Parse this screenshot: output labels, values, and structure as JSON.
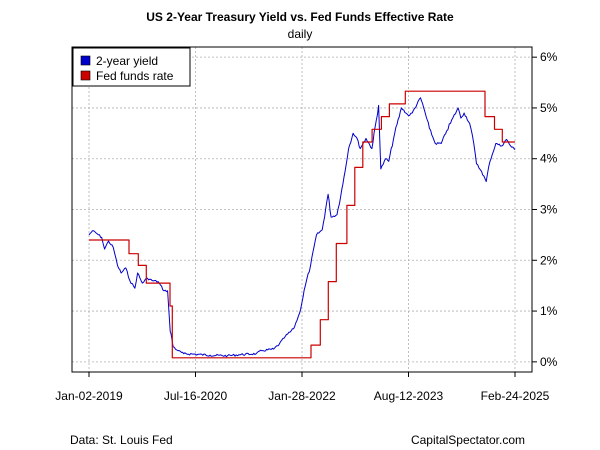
{
  "chart_data": {
    "type": "line",
    "title": "US 2-Year Treasury Yield vs. Fed Funds Effective Rate",
    "subtitle": "daily",
    "source_left": "Data: St. Louis Fed",
    "source_right": "CapitalSpectator.com",
    "x_ticks": [
      "Jan-02-2019",
      "Jul-16-2020",
      "Jan-28-2022",
      "Aug-12-2023",
      "Feb-24-2025"
    ],
    "x_range": [
      "2019-01-02",
      "2025-02-24"
    ],
    "y_ticks": [
      "0%",
      "1%",
      "2%",
      "3%",
      "4%",
      "5%",
      "6%"
    ],
    "y_unit": "%",
    "ylim": [
      -0.2,
      6.2
    ],
    "grid": true,
    "legend_position": "top-left",
    "series": [
      {
        "name": "2-year yield",
        "color": "#0000cc",
        "points": [
          [
            "2019-01-02",
            2.5
          ],
          [
            "2019-01-20",
            2.58
          ],
          [
            "2019-02-15",
            2.52
          ],
          [
            "2019-03-10",
            2.45
          ],
          [
            "2019-03-25",
            2.22
          ],
          [
            "2019-04-15",
            2.38
          ],
          [
            "2019-05-10",
            2.25
          ],
          [
            "2019-06-01",
            1.9
          ],
          [
            "2019-06-20",
            1.75
          ],
          [
            "2019-07-15",
            1.85
          ],
          [
            "2019-08-05",
            1.6
          ],
          [
            "2019-09-01",
            1.45
          ],
          [
            "2019-09-15",
            1.75
          ],
          [
            "2019-10-10",
            1.55
          ],
          [
            "2019-11-05",
            1.65
          ],
          [
            "2019-12-01",
            1.6
          ],
          [
            "2020-01-01",
            1.58
          ],
          [
            "2020-02-01",
            1.4
          ],
          [
            "2020-02-20",
            1.4
          ],
          [
            "2020-03-05",
            0.6
          ],
          [
            "2020-03-12",
            0.5
          ],
          [
            "2020-03-20",
            0.3
          ],
          [
            "2020-04-15",
            0.22
          ],
          [
            "2020-05-15",
            0.16
          ],
          [
            "2020-07-16",
            0.15
          ],
          [
            "2020-10-01",
            0.13
          ],
          [
            "2021-01-01",
            0.12
          ],
          [
            "2021-03-01",
            0.14
          ],
          [
            "2021-06-01",
            0.16
          ],
          [
            "2021-07-01",
            0.22
          ],
          [
            "2021-09-01",
            0.25
          ],
          [
            "2021-10-01",
            0.35
          ],
          [
            "2021-11-01",
            0.5
          ],
          [
            "2021-12-15",
            0.65
          ],
          [
            "2022-01-15",
            0.95
          ],
          [
            "2022-02-15",
            1.5
          ],
          [
            "2022-03-15",
            1.9
          ],
          [
            "2022-04-15",
            2.5
          ],
          [
            "2022-05-15",
            2.6
          ],
          [
            "2022-06-15",
            3.3
          ],
          [
            "2022-07-01",
            2.85
          ],
          [
            "2022-08-01",
            2.9
          ],
          [
            "2022-09-01",
            3.5
          ],
          [
            "2022-10-01",
            4.2
          ],
          [
            "2022-10-25",
            4.5
          ],
          [
            "2022-11-15",
            4.4
          ],
          [
            "2022-12-01",
            4.2
          ],
          [
            "2023-01-01",
            4.4
          ],
          [
            "2023-02-01",
            4.2
          ],
          [
            "2023-03-08",
            5.05
          ],
          [
            "2023-03-20",
            3.8
          ],
          [
            "2023-04-15",
            4.0
          ],
          [
            "2023-05-01",
            3.95
          ],
          [
            "2023-06-01",
            4.5
          ],
          [
            "2023-07-07",
            5.0
          ],
          [
            "2023-08-12",
            4.85
          ],
          [
            "2023-09-01",
            4.9
          ],
          [
            "2023-10-15",
            5.2
          ],
          [
            "2023-11-01",
            5.0
          ],
          [
            "2023-12-01",
            4.6
          ],
          [
            "2024-01-01",
            4.3
          ],
          [
            "2024-02-01",
            4.3
          ],
          [
            "2024-03-01",
            4.55
          ],
          [
            "2024-04-30",
            5.0
          ],
          [
            "2024-05-15",
            4.8
          ],
          [
            "2024-06-01",
            4.9
          ],
          [
            "2024-06-30",
            4.7
          ],
          [
            "2024-07-15",
            4.45
          ],
          [
            "2024-08-05",
            3.9
          ],
          [
            "2024-09-01",
            3.75
          ],
          [
            "2024-09-25",
            3.55
          ],
          [
            "2024-10-15",
            3.95
          ],
          [
            "2024-11-15",
            4.3
          ],
          [
            "2024-12-15",
            4.25
          ],
          [
            "2025-01-10",
            4.38
          ],
          [
            "2025-02-01",
            4.25
          ],
          [
            "2025-02-24",
            4.18
          ]
        ]
      },
      {
        "name": "Fed funds rate",
        "color": "#cc0000",
        "points": [
          [
            "2019-01-02",
            2.4
          ],
          [
            "2019-08-01",
            2.4
          ],
          [
            "2019-08-01",
            2.13
          ],
          [
            "2019-09-19",
            2.13
          ],
          [
            "2019-09-19",
            1.9
          ],
          [
            "2019-10-31",
            1.9
          ],
          [
            "2019-10-31",
            1.55
          ],
          [
            "2020-03-04",
            1.55
          ],
          [
            "2020-03-04",
            1.1
          ],
          [
            "2020-03-16",
            1.1
          ],
          [
            "2020-03-16",
            0.08
          ],
          [
            "2021-12-31",
            0.08
          ],
          [
            "2022-03-17",
            0.08
          ],
          [
            "2022-03-17",
            0.33
          ],
          [
            "2022-05-05",
            0.33
          ],
          [
            "2022-05-05",
            0.83
          ],
          [
            "2022-06-16",
            0.83
          ],
          [
            "2022-06-16",
            1.58
          ],
          [
            "2022-07-28",
            1.58
          ],
          [
            "2022-07-28",
            2.33
          ],
          [
            "2022-09-22",
            2.33
          ],
          [
            "2022-09-22",
            3.08
          ],
          [
            "2022-11-03",
            3.08
          ],
          [
            "2022-11-03",
            3.83
          ],
          [
            "2022-12-15",
            3.83
          ],
          [
            "2022-12-15",
            4.33
          ],
          [
            "2023-02-02",
            4.33
          ],
          [
            "2023-02-02",
            4.58
          ],
          [
            "2023-03-23",
            4.58
          ],
          [
            "2023-03-23",
            4.83
          ],
          [
            "2023-05-04",
            4.83
          ],
          [
            "2023-05-04",
            5.08
          ],
          [
            "2023-07-27",
            5.08
          ],
          [
            "2023-07-27",
            5.33
          ],
          [
            "2024-09-19",
            5.33
          ],
          [
            "2024-09-19",
            4.83
          ],
          [
            "2024-11-08",
            4.83
          ],
          [
            "2024-11-08",
            4.58
          ],
          [
            "2024-12-19",
            4.58
          ],
          [
            "2024-12-19",
            4.33
          ],
          [
            "2025-02-24",
            4.33
          ]
        ]
      }
    ]
  }
}
